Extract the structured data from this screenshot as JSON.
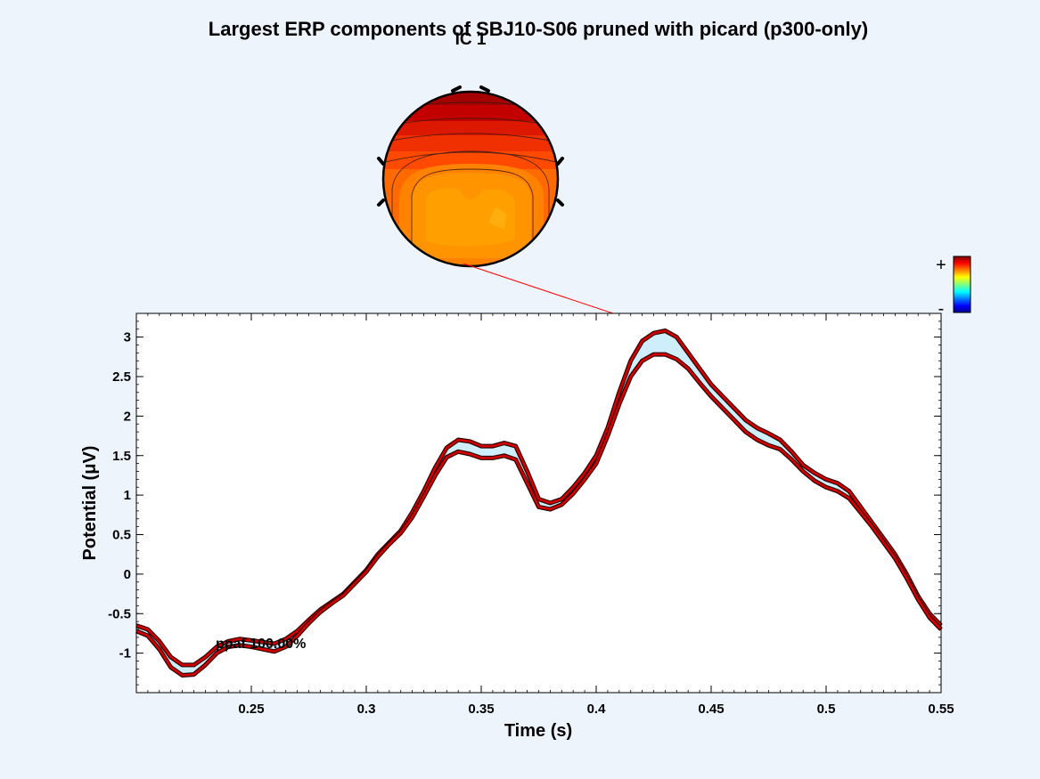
{
  "chart_data": {
    "type": "area",
    "title": "Largest ERP components of SBJ10-S06 pruned with picard (p300-only)",
    "xlabel": "Time (s)",
    "ylabel": "Potential (μV)",
    "xlim": [
      0.2,
      0.55
    ],
    "ylim": [
      -1.5,
      3.3
    ],
    "xticks": [
      0.25,
      0.3,
      0.35,
      0.4,
      0.45,
      0.5,
      0.55
    ],
    "xtick_labels": [
      "0.25",
      "0.3",
      "0.35",
      "0.4",
      "0.45",
      "0.5",
      "0.55"
    ],
    "yticks": [
      -1,
      -0.5,
      0,
      0.5,
      1,
      1.5,
      2,
      2.5,
      3
    ],
    "ytick_labels": [
      "-1",
      "-0.5",
      "0",
      "0.5",
      "1",
      "1.5",
      "2",
      "2.5",
      "3"
    ],
    "grid": false,
    "annotation": "ppaf 100.00%",
    "series": [
      {
        "name": "",
        "role": "envelope upper",
        "color": "#cc0000",
        "x": [
          0.2,
          0.205,
          0.21,
          0.215,
          0.22,
          0.225,
          0.23,
          0.235,
          0.24,
          0.245,
          0.25,
          0.255,
          0.26,
          0.265,
          0.27,
          0.275,
          0.28,
          0.285,
          0.29,
          0.295,
          0.3,
          0.305,
          0.31,
          0.315,
          0.32,
          0.325,
          0.33,
          0.335,
          0.34,
          0.345,
          0.35,
          0.355,
          0.36,
          0.365,
          0.37,
          0.375,
          0.38,
          0.385,
          0.39,
          0.395,
          0.4,
          0.405,
          0.41,
          0.415,
          0.42,
          0.425,
          0.43,
          0.435,
          0.44,
          0.445,
          0.45,
          0.455,
          0.46,
          0.465,
          0.47,
          0.475,
          0.48,
          0.485,
          0.49,
          0.495,
          0.5,
          0.505,
          0.51,
          0.515,
          0.52,
          0.525,
          0.53,
          0.535,
          0.54,
          0.545,
          0.55
        ],
        "y": [
          -0.65,
          -0.7,
          -0.85,
          -1.05,
          -1.15,
          -1.15,
          -1.05,
          -0.92,
          -0.85,
          -0.82,
          -0.84,
          -0.86,
          -0.88,
          -0.82,
          -0.72,
          -0.58,
          -0.45,
          -0.35,
          -0.25,
          -0.1,
          0.05,
          0.25,
          0.4,
          0.55,
          0.78,
          1.05,
          1.35,
          1.6,
          1.7,
          1.68,
          1.62,
          1.62,
          1.66,
          1.62,
          1.3,
          0.95,
          0.9,
          0.95,
          1.1,
          1.28,
          1.5,
          1.85,
          2.3,
          2.7,
          2.95,
          3.05,
          3.08,
          3.0,
          2.8,
          2.6,
          2.4,
          2.25,
          2.1,
          1.95,
          1.85,
          1.78,
          1.7,
          1.55,
          1.38,
          1.28,
          1.2,
          1.15,
          1.05,
          0.85,
          0.65,
          0.45,
          0.25,
          0.0,
          -0.28,
          -0.5,
          -0.65
        ]
      },
      {
        "name": "",
        "role": "envelope lower",
        "color": "#cc0000",
        "x": [
          0.2,
          0.205,
          0.21,
          0.215,
          0.22,
          0.225,
          0.23,
          0.235,
          0.24,
          0.245,
          0.25,
          0.255,
          0.26,
          0.265,
          0.27,
          0.275,
          0.28,
          0.285,
          0.29,
          0.295,
          0.3,
          0.305,
          0.31,
          0.315,
          0.32,
          0.325,
          0.33,
          0.335,
          0.34,
          0.345,
          0.35,
          0.355,
          0.36,
          0.365,
          0.37,
          0.375,
          0.38,
          0.385,
          0.39,
          0.395,
          0.4,
          0.405,
          0.41,
          0.415,
          0.42,
          0.425,
          0.43,
          0.435,
          0.44,
          0.445,
          0.45,
          0.455,
          0.46,
          0.465,
          0.47,
          0.475,
          0.48,
          0.485,
          0.49,
          0.495,
          0.5,
          0.505,
          0.51,
          0.515,
          0.52,
          0.525,
          0.53,
          0.535,
          0.54,
          0.545,
          0.55
        ],
        "y": [
          -0.72,
          -0.78,
          -0.95,
          -1.18,
          -1.28,
          -1.27,
          -1.15,
          -1.0,
          -0.92,
          -0.9,
          -0.92,
          -0.95,
          -0.98,
          -0.92,
          -0.78,
          -0.62,
          -0.48,
          -0.37,
          -0.27,
          -0.12,
          0.03,
          0.22,
          0.38,
          0.52,
          0.72,
          0.98,
          1.25,
          1.48,
          1.55,
          1.52,
          1.47,
          1.47,
          1.5,
          1.45,
          1.15,
          0.85,
          0.82,
          0.88,
          1.02,
          1.2,
          1.4,
          1.75,
          2.15,
          2.5,
          2.7,
          2.78,
          2.78,
          2.72,
          2.6,
          2.42,
          2.25,
          2.1,
          1.95,
          1.8,
          1.7,
          1.63,
          1.58,
          1.45,
          1.3,
          1.18,
          1.1,
          1.05,
          0.96,
          0.78,
          0.6,
          0.4,
          0.2,
          -0.05,
          -0.32,
          -0.55,
          -0.7
        ]
      }
    ]
  },
  "topoplot": {
    "title": "IC 1",
    "colorbar_plus": "+",
    "colorbar_minus": "-",
    "peak_time": 0.43,
    "peak_value": 3.08
  }
}
